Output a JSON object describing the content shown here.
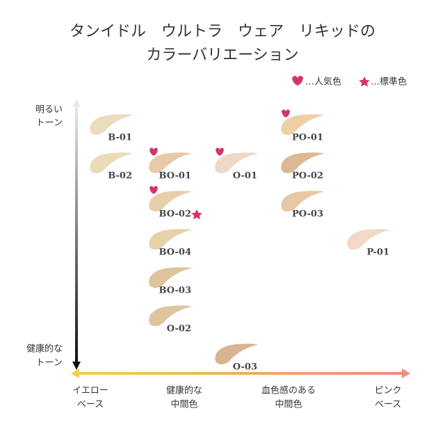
{
  "title": [
    "タンイドル　ウルトラ　ウェア　リキッドの",
    "カラーバリエーション"
  ],
  "legend": {
    "popular": "…人気色",
    "standard": "…標準色"
  },
  "y_axis": {
    "top": [
      "明るい",
      "トーン"
    ],
    "bottom": [
      "健康的な",
      "トーン"
    ]
  },
  "x_axis": [
    [
      "イエロー",
      "ベース"
    ],
    [
      "健康的な",
      "中間色"
    ],
    [
      "血色感のある",
      "中間色"
    ],
    [
      "ピンク",
      "ベース"
    ]
  ],
  "swatches": [
    {
      "label": "B-01",
      "color": "#ecdcbb",
      "popular": false,
      "standard": false
    },
    {
      "label": "B-02",
      "color": "#eadcb8",
      "popular": false,
      "standard": false
    },
    {
      "label": "BO-01",
      "color": "#e8c9a8",
      "popular": true,
      "standard": false
    },
    {
      "label": "BO-02",
      "color": "#e9cfa9",
      "popular": true,
      "standard": true
    },
    {
      "label": "BO-04",
      "color": "#e6d1aa",
      "popular": false,
      "standard": false
    },
    {
      "label": "BO-03",
      "color": "#dfc39c",
      "popular": false,
      "standard": false
    },
    {
      "label": "O-02",
      "color": "#e0c49e",
      "popular": false,
      "standard": false
    },
    {
      "label": "O-01",
      "color": "#f0d8c6",
      "popular": true,
      "standard": false
    },
    {
      "label": "O-03",
      "color": "#d9b491",
      "popular": false,
      "standard": false
    },
    {
      "label": "PO-01",
      "color": "#f0cfa8",
      "popular": true,
      "standard": false
    },
    {
      "label": "PO-02",
      "color": "#dcb894",
      "popular": false,
      "standard": false
    },
    {
      "label": "PO-03",
      "color": "#e6c9a2",
      "popular": false,
      "standard": false
    },
    {
      "label": "P-01",
      "color": "#f3d8c8",
      "popular": false,
      "standard": false
    }
  ]
}
